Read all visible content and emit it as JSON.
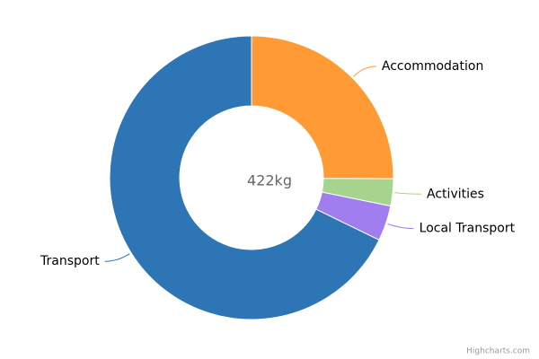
{
  "chart_data": {
    "type": "donut",
    "center_label": "422kg",
    "categories": [
      "Accommodation",
      "Activities",
      "Local Transport",
      "Transport"
    ],
    "values": [
      106,
      13,
      17,
      286
    ],
    "colors": [
      "#ff9a35",
      "#a6d48e",
      "#a07ef0",
      "#2e75b6"
    ],
    "credits": "Highcharts.com"
  }
}
